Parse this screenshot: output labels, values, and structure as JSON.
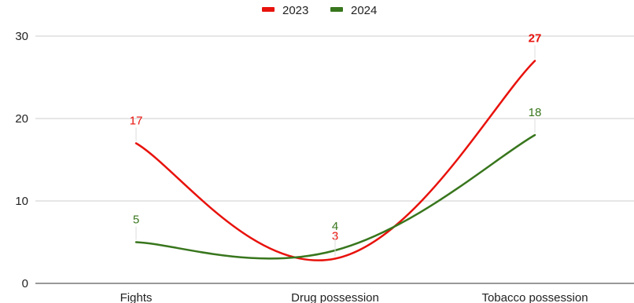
{
  "chart_data": {
    "type": "line",
    "title": "",
    "xlabel": "",
    "ylabel": "",
    "categories": [
      "Fights",
      "Drug possession",
      "Tobacco possession"
    ],
    "ylim": [
      0,
      30
    ],
    "yticks": [
      0,
      10,
      20,
      30
    ],
    "grid": true,
    "legend_position": "top-center",
    "series": [
      {
        "name": "2023",
        "color": "#e8120c",
        "values": [
          17,
          3,
          27
        ],
        "labels": [
          "17",
          "3",
          "27"
        ],
        "bold_last": true
      },
      {
        "name": "2024",
        "color": "#38761d",
        "values": [
          5,
          4,
          18
        ],
        "labels": [
          "5",
          "4",
          "18"
        ]
      }
    ]
  }
}
